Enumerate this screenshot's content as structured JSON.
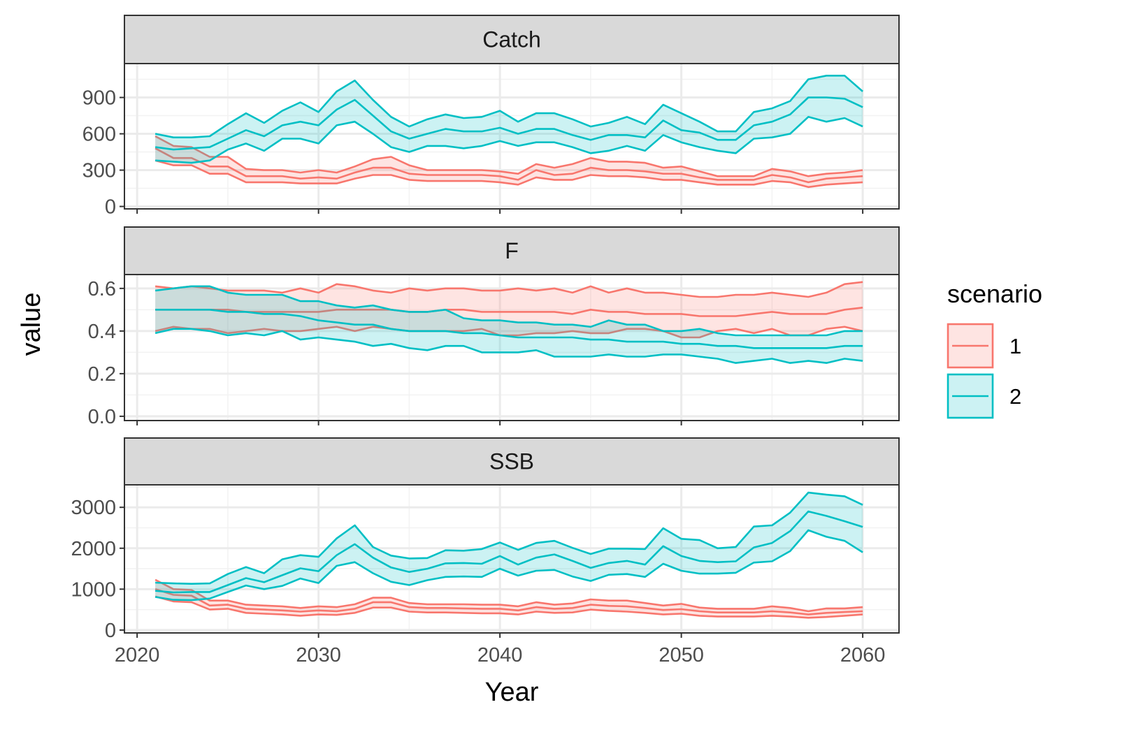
{
  "chart_data": {
    "type": "area",
    "xlabel": "Year",
    "ylabel": "value",
    "xlim": [
      2019.3,
      2062
    ],
    "x_ticks": [
      2020,
      2030,
      2040,
      2050,
      2060
    ],
    "x_tick_labels": [
      "2020",
      "2030",
      "2040",
      "2050",
      "2060"
    ],
    "x": [
      2021,
      2022,
      2023,
      2024,
      2025,
      2026,
      2027,
      2028,
      2029,
      2030,
      2031,
      2032,
      2033,
      2034,
      2035,
      2036,
      2037,
      2038,
      2039,
      2040,
      2041,
      2042,
      2043,
      2044,
      2045,
      2046,
      2047,
      2048,
      2049,
      2050,
      2051,
      2052,
      2053,
      2054,
      2055,
      2056,
      2057,
      2058,
      2059,
      2060
    ],
    "grid": true,
    "legend": {
      "title": "scenario",
      "position": "right",
      "entries": [
        {
          "label": "1",
          "color": "#F8766D"
        },
        {
          "label": "2",
          "color": "#00BFC4"
        }
      ]
    },
    "panels": [
      {
        "title": "Catch",
        "ylim": [
          -20,
          1180
        ],
        "y_ticks": [
          0,
          300,
          600,
          900
        ],
        "y_tick_labels": [
          "0",
          "300",
          "600",
          "900"
        ],
        "series": [
          {
            "name": "1",
            "color": "#F8766D",
            "lower": [
              380,
              340,
              340,
              270,
              270,
              200,
              200,
              200,
              190,
              190,
              190,
              230,
              260,
              260,
              220,
              210,
              210,
              210,
              210,
              200,
              180,
              240,
              220,
              220,
              260,
              250,
              250,
              240,
              220,
              220,
              200,
              180,
              180,
              180,
              210,
              200,
              160,
              180,
              190,
              200
            ],
            "median": [
              480,
              400,
              400,
              330,
              330,
              250,
              250,
              250,
              230,
              240,
              230,
              280,
              320,
              320,
              270,
              260,
              260,
              260,
              260,
              250,
              220,
              300,
              260,
              270,
              320,
              300,
              300,
              290,
              270,
              270,
              240,
              220,
              220,
              220,
              260,
              240,
              200,
              230,
              240,
              250
            ],
            "upper": [
              580,
              500,
              490,
              410,
              410,
              310,
              300,
              300,
              280,
              300,
              280,
              330,
              390,
              410,
              340,
              300,
              300,
              300,
              300,
              290,
              270,
              350,
              320,
              350,
              400,
              370,
              370,
              360,
              320,
              330,
              290,
              250,
              250,
              250,
              310,
              290,
              250,
              270,
              280,
              300
            ]
          },
          {
            "name": "2",
            "color": "#00BFC4",
            "lower": [
              380,
              370,
              360,
              380,
              470,
              520,
              460,
              560,
              560,
              520,
              670,
              700,
              600,
              490,
              450,
              500,
              500,
              480,
              500,
              540,
              500,
              530,
              530,
              490,
              440,
              460,
              500,
              460,
              590,
              530,
              490,
              460,
              440,
              560,
              570,
              600,
              740,
              700,
              730,
              660
            ],
            "median": [
              490,
              470,
              480,
              490,
              560,
              630,
              580,
              670,
              700,
              670,
              800,
              880,
              750,
              620,
              560,
              600,
              640,
              620,
              620,
              650,
              600,
              640,
              640,
              590,
              550,
              590,
              590,
              570,
              710,
              630,
              610,
              550,
              550,
              670,
              700,
              760,
              900,
              900,
              890,
              820
            ],
            "upper": [
              600,
              570,
              570,
              580,
              680,
              770,
              690,
              790,
              860,
              780,
              950,
              1040,
              880,
              740,
              660,
              720,
              760,
              730,
              740,
              790,
              700,
              770,
              770,
              720,
              660,
              690,
              740,
              680,
              840,
              770,
              700,
              620,
              620,
              780,
              810,
              870,
              1050,
              1080,
              1080,
              950
            ]
          }
        ]
      },
      {
        "title": "F",
        "ylim": [
          -0.02,
          0.665
        ],
        "y_ticks": [
          0.0,
          0.2,
          0.4,
          0.6
        ],
        "y_tick_labels": [
          "0.0",
          "0.2",
          "0.4",
          "0.6"
        ],
        "series": [
          {
            "name": "1",
            "color": "#F8766D",
            "lower": [
              0.4,
              0.42,
              0.41,
              0.41,
              0.39,
              0.4,
              0.41,
              0.4,
              0.4,
              0.41,
              0.42,
              0.4,
              0.42,
              0.41,
              0.4,
              0.4,
              0.4,
              0.4,
              0.41,
              0.38,
              0.38,
              0.39,
              0.39,
              0.4,
              0.39,
              0.39,
              0.41,
              0.41,
              0.4,
              0.37,
              0.37,
              0.4,
              0.41,
              0.39,
              0.41,
              0.38,
              0.38,
              0.41,
              0.42,
              0.4
            ],
            "median": [
              0.5,
              0.5,
              0.5,
              0.5,
              0.5,
              0.49,
              0.49,
              0.49,
              0.49,
              0.49,
              0.5,
              0.5,
              0.5,
              0.5,
              0.49,
              0.49,
              0.5,
              0.5,
              0.49,
              0.49,
              0.49,
              0.49,
              0.49,
              0.48,
              0.5,
              0.49,
              0.49,
              0.48,
              0.48,
              0.48,
              0.47,
              0.47,
              0.47,
              0.48,
              0.49,
              0.48,
              0.48,
              0.48,
              0.5,
              0.51
            ],
            "upper": [
              0.61,
              0.6,
              0.61,
              0.6,
              0.59,
              0.59,
              0.59,
              0.58,
              0.6,
              0.58,
              0.62,
              0.61,
              0.59,
              0.58,
              0.6,
              0.59,
              0.6,
              0.6,
              0.59,
              0.59,
              0.6,
              0.59,
              0.6,
              0.58,
              0.61,
              0.58,
              0.6,
              0.58,
              0.58,
              0.57,
              0.56,
              0.56,
              0.57,
              0.57,
              0.58,
              0.57,
              0.56,
              0.58,
              0.62,
              0.63
            ]
          },
          {
            "name": "2",
            "color": "#00BFC4",
            "lower": [
              0.39,
              0.41,
              0.41,
              0.4,
              0.38,
              0.39,
              0.38,
              0.4,
              0.36,
              0.37,
              0.36,
              0.35,
              0.33,
              0.34,
              0.32,
              0.31,
              0.33,
              0.33,
              0.3,
              0.3,
              0.3,
              0.31,
              0.28,
              0.28,
              0.28,
              0.29,
              0.28,
              0.28,
              0.29,
              0.29,
              0.28,
              0.27,
              0.25,
              0.26,
              0.27,
              0.25,
              0.26,
              0.25,
              0.27,
              0.26
            ],
            "median": [
              0.5,
              0.5,
              0.5,
              0.5,
              0.49,
              0.49,
              0.48,
              0.48,
              0.47,
              0.45,
              0.44,
              0.43,
              0.43,
              0.41,
              0.4,
              0.4,
              0.4,
              0.39,
              0.39,
              0.38,
              0.37,
              0.37,
              0.37,
              0.37,
              0.36,
              0.36,
              0.35,
              0.35,
              0.35,
              0.34,
              0.34,
              0.33,
              0.33,
              0.32,
              0.32,
              0.32,
              0.32,
              0.32,
              0.33,
              0.33
            ],
            "upper": [
              0.59,
              0.6,
              0.61,
              0.61,
              0.58,
              0.57,
              0.57,
              0.57,
              0.54,
              0.54,
              0.52,
              0.51,
              0.52,
              0.5,
              0.49,
              0.49,
              0.5,
              0.46,
              0.45,
              0.45,
              0.44,
              0.44,
              0.43,
              0.43,
              0.42,
              0.45,
              0.43,
              0.43,
              0.4,
              0.4,
              0.41,
              0.39,
              0.38,
              0.38,
              0.38,
              0.38,
              0.38,
              0.38,
              0.4,
              0.4
            ]
          }
        ]
      },
      {
        "title": "SSB",
        "ylim": [
          -70,
          3550
        ],
        "y_ticks": [
          0,
          1000,
          2000,
          3000
        ],
        "y_tick_labels": [
          "0",
          "1000",
          "2000",
          "3000"
        ],
        "series": [
          {
            "name": "1",
            "color": "#F8766D",
            "lower": [
              820,
              700,
              680,
              500,
              520,
              420,
              400,
              380,
              350,
              380,
              370,
              420,
              550,
              550,
              450,
              430,
              430,
              420,
              410,
              410,
              380,
              450,
              420,
              430,
              500,
              470,
              450,
              420,
              380,
              400,
              350,
              330,
              330,
              330,
              350,
              330,
              300,
              320,
              350,
              380
            ],
            "median": [
              1000,
              860,
              840,
              600,
              620,
              520,
              500,
              480,
              450,
              480,
              460,
              520,
              680,
              680,
              560,
              540,
              540,
              530,
              520,
              520,
              480,
              560,
              520,
              540,
              620,
              590,
              580,
              540,
              490,
              510,
              460,
              430,
              430,
              430,
              460,
              430,
              380,
              420,
              440,
              460
            ],
            "upper": [
              1230,
              1000,
              980,
              720,
              720,
              620,
              600,
              580,
              540,
              580,
              560,
              630,
              790,
              790,
              660,
              630,
              630,
              630,
              620,
              620,
              580,
              680,
              620,
              650,
              750,
              720,
              720,
              660,
              600,
              640,
              550,
              520,
              520,
              520,
              580,
              540,
              460,
              530,
              530,
              560
            ]
          },
          {
            "name": "2",
            "color": "#00BFC4",
            "lower": [
              810,
              740,
              730,
              770,
              930,
              1090,
              1000,
              1080,
              1260,
              1150,
              1570,
              1660,
              1390,
              1180,
              1100,
              1220,
              1300,
              1310,
              1300,
              1500,
              1330,
              1450,
              1470,
              1310,
              1200,
              1350,
              1370,
              1300,
              1620,
              1450,
              1380,
              1380,
              1400,
              1650,
              1680,
              1930,
              2440,
              2280,
              2180,
              1900
            ],
            "median": [
              960,
              920,
              930,
              930,
              1100,
              1270,
              1170,
              1340,
              1510,
              1440,
              1830,
              2100,
              1770,
              1530,
              1420,
              1500,
              1630,
              1640,
              1620,
              1810,
              1600,
              1770,
              1850,
              1690,
              1520,
              1640,
              1690,
              1600,
              2050,
              1810,
              1690,
              1660,
              1680,
              2020,
              2130,
              2420,
              2900,
              2790,
              2660,
              2520
            ],
            "upper": [
              1160,
              1140,
              1130,
              1140,
              1370,
              1540,
              1390,
              1730,
              1830,
              1790,
              2240,
              2560,
              2030,
              1820,
              1750,
              1760,
              1950,
              1940,
              1980,
              2140,
              1960,
              2130,
              2180,
              2010,
              1860,
              1990,
              1990,
              1980,
              2490,
              2230,
              2200,
              2000,
              2030,
              2530,
              2560,
              2870,
              3360,
              3310,
              3270,
              3060
            ]
          }
        ]
      }
    ]
  }
}
